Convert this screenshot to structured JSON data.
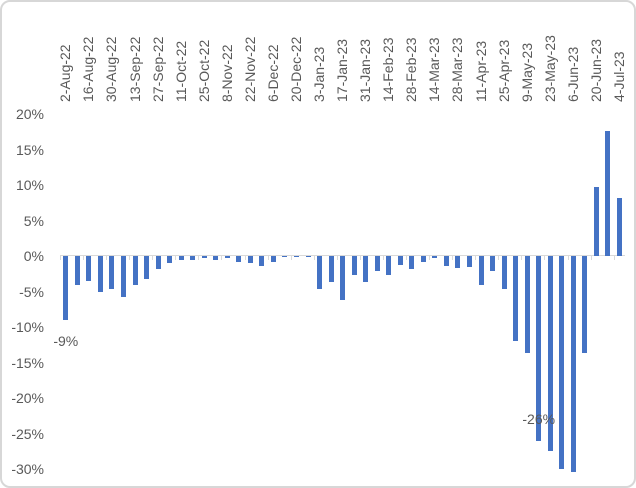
{
  "chart_data": {
    "type": "bar",
    "title": "",
    "xlabel": "",
    "ylabel": "",
    "ylim": [
      -30,
      20
    ],
    "y_unit": "%",
    "grid": false,
    "legend": false,
    "bar_color": "#4472C4",
    "axis_color": "#D9D9D9",
    "text_color": "#595959",
    "x": [
      "2-Aug-22",
      "9-Aug-22",
      "16-Aug-22",
      "23-Aug-22",
      "30-Aug-22",
      "6-Sep-22",
      "13-Sep-22",
      "20-Sep-22",
      "27-Sep-22",
      "4-Oct-22",
      "11-Oct-22",
      "18-Oct-22",
      "25-Oct-22",
      "1-Nov-22",
      "8-Nov-22",
      "15-Nov-22",
      "22-Nov-22",
      "29-Nov-22",
      "6-Dec-22",
      "13-Dec-22",
      "20-Dec-22",
      "27-Dec-22",
      "3-Jan-23",
      "10-Jan-23",
      "17-Jan-23",
      "24-Jan-23",
      "31-Jan-23",
      "7-Feb-23",
      "14-Feb-23",
      "21-Feb-23",
      "28-Feb-23",
      "7-Mar-23",
      "14-Mar-23",
      "21-Mar-23",
      "28-Mar-23",
      "4-Apr-23",
      "11-Apr-23",
      "18-Apr-23",
      "25-Apr-23",
      "2-May-23",
      "9-May-23",
      "16-May-23",
      "23-May-23",
      "30-May-23",
      "6-Jun-23",
      "13-Jun-23",
      "20-Jun-23",
      "27-Jun-23",
      "4-Jul-23"
    ],
    "values": [
      -9.0,
      -4.1,
      -3.5,
      -5.0,
      -4.6,
      -5.8,
      -4.1,
      -3.2,
      -1.8,
      -1.0,
      -0.5,
      -0.6,
      -0.3,
      -0.5,
      -0.3,
      -0.8,
      -1.0,
      -1.4,
      -0.9,
      -0.2,
      -0.1,
      -0.2,
      -4.7,
      -3.6,
      -6.2,
      -2.7,
      -3.6,
      -2.1,
      -2.7,
      -1.3,
      -1.9,
      -0.8,
      -0.3,
      -1.4,
      -1.7,
      -1.5,
      -4.1,
      -2.1,
      -4.7,
      -12.0,
      -13.7,
      -26.0,
      -27.4,
      -30.0,
      -30.4,
      -13.7,
      9.7,
      17.6,
      8.1
    ],
    "x_tick_labels": [
      "2-Aug-22",
      "16-Aug-22",
      "30-Aug-22",
      "13-Sep-22",
      "27-Sep-22",
      "11-Oct-22",
      "25-Oct-22",
      "8-Nov-22",
      "22-Nov-22",
      "6-Dec-22",
      "20-Dec-22",
      "3-Jan-23",
      "17-Jan-23",
      "31-Jan-23",
      "14-Feb-23",
      "28-Feb-23",
      "14-Mar-23",
      "28-Mar-23",
      "11-Apr-23",
      "25-Apr-23",
      "9-May-23",
      "23-May-23",
      "6-Jun-23",
      "20-Jun-23",
      "4-Jul-23"
    ],
    "y_tick_labels": [
      "20%",
      "15%",
      "10%",
      "5%",
      "0%",
      "-5%",
      "-10%",
      "-15%",
      "-20%",
      "-25%",
      "-30%"
    ],
    "annotations": [
      {
        "text": "-9%",
        "index": 0,
        "category": "2-Aug-22"
      },
      {
        "text": "-26%",
        "index": 41,
        "category": "16-May-23"
      }
    ]
  }
}
